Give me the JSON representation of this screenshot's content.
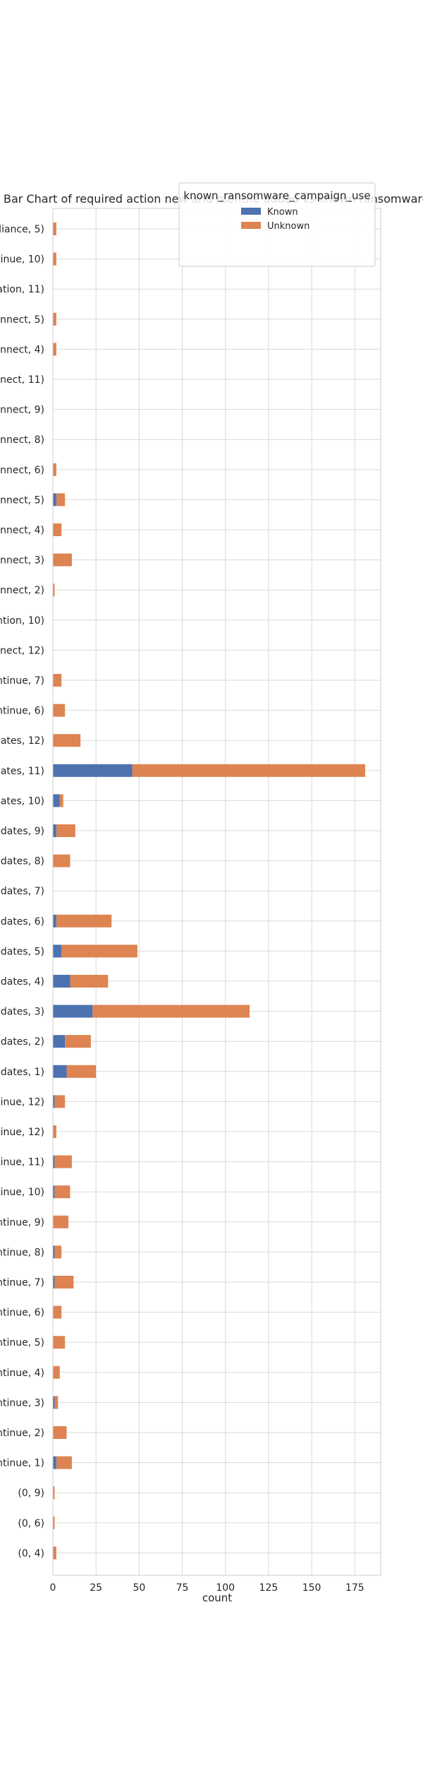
{
  "chart_data": {
    "type": "bar",
    "orientation": "horizontal",
    "stacked": true,
    "title": "Bar Chart of  required action new and monthe added vs known ransomware cam",
    "xlabel": "count",
    "ylabel": "",
    "xlim": [
      0,
      190
    ],
    "xticks": [
      0,
      25,
      50,
      75,
      100,
      125,
      150,
      175
    ],
    "grid": true,
    "legend": {
      "title": "known_ransomware_campaign_use",
      "placement": "top-right"
    },
    "categories": [
      "lliance, 5)",
      "tinue, 10)",
      "ation, 11)",
      "onnect, 5)",
      "onnect, 4)",
      "nnect, 11)",
      "onnect, 9)",
      "onnect, 8)",
      "onnect, 6)",
      "onnect, 5)",
      "onnect, 4)",
      "onnect, 3)",
      "onnect, 2)",
      "ntion, 10)",
      "nect, 12)",
      "ntinue, 7)",
      "ntinue, 6)",
      "lates, 12)",
      "lates, 11)",
      "lates, 10)",
      "pdates, 9)",
      "pdates, 8)",
      "pdates, 7)",
      "pdates, 6)",
      "pdates, 5)",
      "pdates, 4)",
      "pdates, 3)",
      "pdates, 2)",
      "pdates, 1)",
      "tinue, 12)",
      "tinue, 12)",
      "tinue, 11)",
      "tinue, 10)",
      "ntinue, 9)",
      "ntinue, 8)",
      "ntinue, 7)",
      "ntinue, 6)",
      "ntinue, 5)",
      "ntinue, 4)",
      "ntinue, 3)",
      "ntinue, 2)",
      "ntinue, 1)",
      "(0, 9)",
      "(0, 6)",
      "(0, 4)"
    ],
    "series": [
      {
        "name": "Known",
        "color": "#4c72b0",
        "values": [
          0,
          0,
          0,
          0,
          0,
          0,
          0,
          0,
          0,
          2,
          0,
          0,
          0,
          0,
          0,
          0,
          0,
          0,
          46,
          4,
          2,
          0,
          0,
          2,
          5,
          10,
          23,
          7,
          8,
          1,
          0,
          1,
          1,
          0,
          1,
          1,
          0,
          0,
          0,
          1,
          0,
          2,
          0,
          0,
          0
        ]
      },
      {
        "name": "Unknown",
        "color": "#dd8452",
        "values": [
          2,
          2,
          0,
          2,
          2,
          0,
          0,
          0,
          2,
          5,
          5,
          11,
          1,
          0,
          0,
          5,
          7,
          16,
          135,
          2,
          11,
          10,
          0,
          32,
          44,
          22,
          91,
          15,
          17,
          6,
          2,
          10,
          9,
          9,
          4,
          11,
          5,
          7,
          4,
          2,
          8,
          9,
          1,
          1,
          2
        ]
      }
    ]
  }
}
